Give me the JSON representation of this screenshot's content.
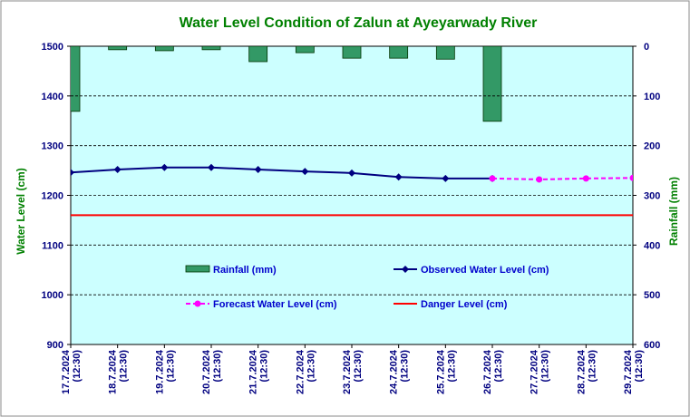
{
  "chart_data": {
    "type": "combo",
    "title": "Water Level Condition of Zalun at Ayeyarwady River",
    "ylabel": "Water Level (cm)",
    "y2label": "Rainfall (mm)",
    "categories": [
      "17.7.2024 (12:30)",
      "18.7.2024 (12:30)",
      "19.7.2024 (12:30)",
      "20.7.2024 (12:30)",
      "21.7.2024 (12:30)",
      "22.7.2024 (12:30)",
      "23.7.2024 (12:30)",
      "24.7.2024 (12:30)",
      "25.7.2024 (12:30)",
      "26.7.2024 (12:30)",
      "27.7.2024 (12:30)",
      "28.7.2024 (12:30)",
      "29.7.2024 (12:30)"
    ],
    "ylim": [
      900,
      1500
    ],
    "yticks": [
      900,
      1000,
      1100,
      1200,
      1300,
      1400,
      1500
    ],
    "y2lim": [
      600,
      0
    ],
    "y2ticks": [
      0,
      100,
      200,
      300,
      400,
      500,
      600
    ],
    "grid": true,
    "series": [
      {
        "name": "Rainfall (mm)",
        "type": "bar",
        "axis": "y2",
        "color": "#339966",
        "values": [
          131,
          7,
          9,
          7,
          31,
          13,
          24,
          24,
          26,
          151,
          null,
          null,
          null
        ]
      },
      {
        "name": "Observed Water Level (cm)",
        "type": "line",
        "marker": "diamond",
        "color": "#000080",
        "values": [
          1246,
          1252,
          1256,
          1256,
          1252,
          1248,
          1245,
          1237,
          1234,
          1234,
          null,
          null,
          null
        ]
      },
      {
        "name": "Forecast Water Level (cm)",
        "type": "line",
        "marker": "circle",
        "dashed": true,
        "color": "#ff00ff",
        "values": [
          null,
          null,
          null,
          null,
          null,
          null,
          null,
          null,
          null,
          1234,
          1232,
          1234,
          1235
        ]
      },
      {
        "name": "Danger Level (cm)",
        "type": "line",
        "color": "#ff0000",
        "values": [
          1160,
          1160,
          1160,
          1160,
          1160,
          1160,
          1160,
          1160,
          1160,
          1160,
          1160,
          1160,
          1160
        ]
      }
    ]
  }
}
